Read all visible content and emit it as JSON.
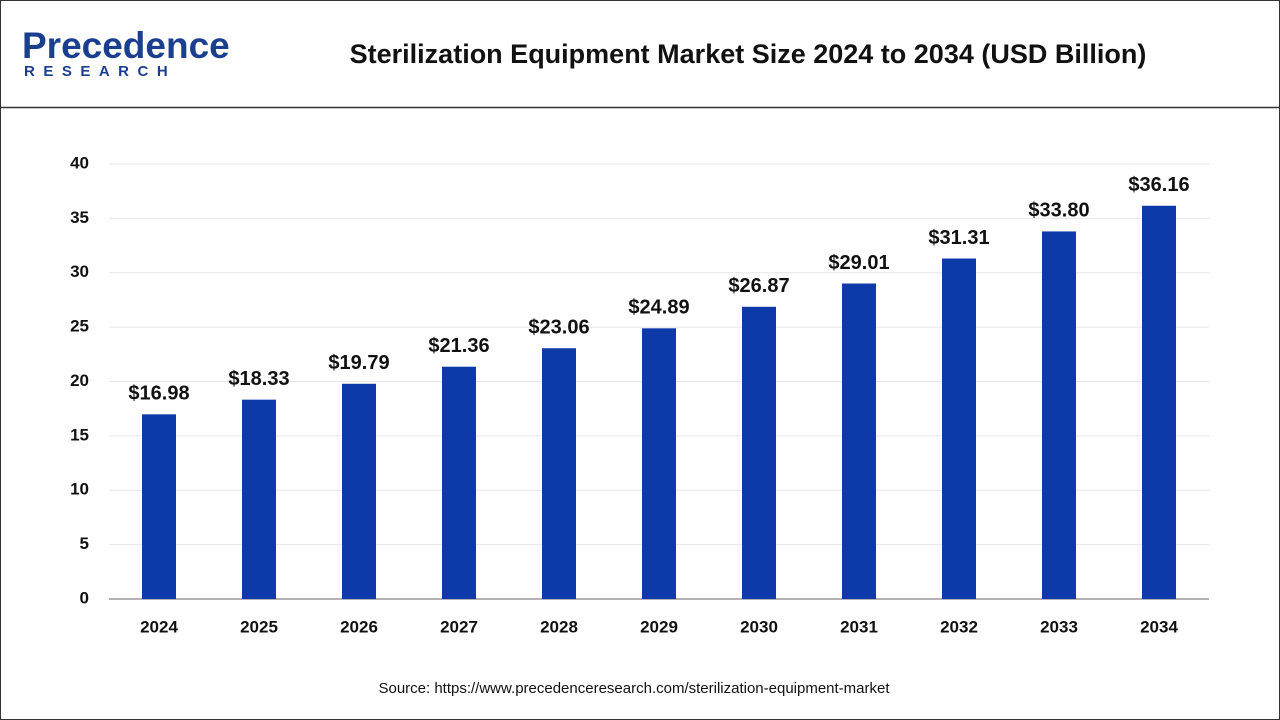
{
  "logo": {
    "name": "Precedence",
    "tagline": "RESEARCH"
  },
  "chart_data": {
    "type": "bar",
    "title": "Sterilization Equipment Market Size 2024 to 2034 (USD Billion)",
    "categories": [
      "2024",
      "2025",
      "2026",
      "2027",
      "2028",
      "2029",
      "2030",
      "2031",
      "2032",
      "2033",
      "2034"
    ],
    "values": [
      16.98,
      18.33,
      19.79,
      21.36,
      23.06,
      24.89,
      26.87,
      29.01,
      31.31,
      33.8,
      36.16
    ],
    "value_labels": [
      "$16.98",
      "$18.33",
      "$19.79",
      "$21.36",
      "$23.06",
      "$24.89",
      "$26.87",
      "$29.01",
      "$31.31",
      "$33.80",
      "$36.16"
    ],
    "color": "#0e3aa9",
    "ylim": [
      0,
      40
    ],
    "yticks": [
      0,
      5,
      10,
      15,
      20,
      25,
      30,
      35,
      40
    ],
    "grid": true,
    "source": "Source: https://www.precedenceresearch.com/sterilization-equipment-market"
  }
}
